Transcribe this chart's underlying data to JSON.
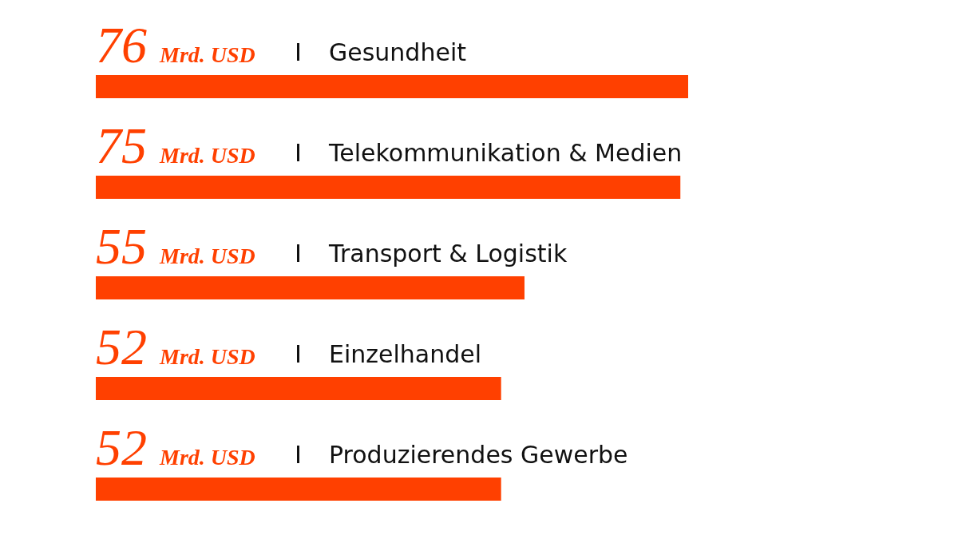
{
  "chart_data": {
    "type": "bar",
    "orientation": "horizontal",
    "categories": [
      "Gesundheit",
      "Telekommunikation & Medien",
      "Transport & Logistik",
      "Einzelhandel",
      "Produzierendes Gewerbe"
    ],
    "values": [
      76,
      75,
      55,
      52,
      52
    ],
    "value_labels": [
      "76 Mrd. USD",
      "75 Mrd. USD",
      "55 Mrd. USD",
      "52 Mrd. USD",
      "52 Mrd. USD"
    ],
    "color": "#ff4000"
  }
}
